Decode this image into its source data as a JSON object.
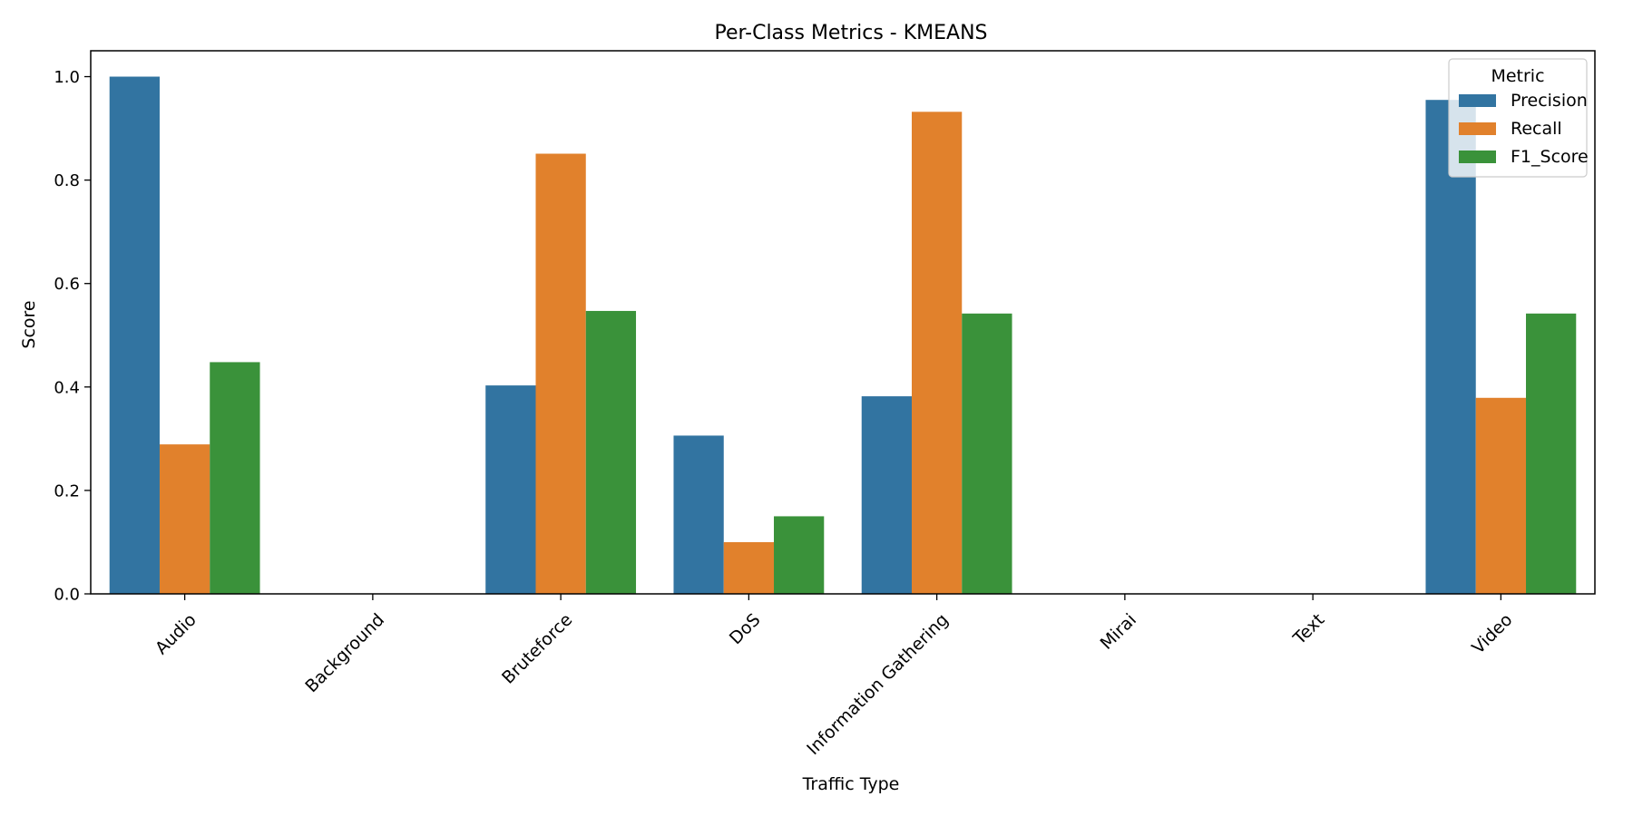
{
  "chart_data": {
    "type": "bar",
    "title": "Per-Class Metrics - KMEANS",
    "xlabel": "Traffic Type",
    "ylabel": "Score",
    "ylim": [
      0,
      1.05
    ],
    "yticks": [
      "0.0",
      "0.2",
      "0.4",
      "0.6",
      "0.8",
      "1.0"
    ],
    "grid": false,
    "categories": [
      "Audio",
      "Background",
      "Bruteforce",
      "DoS",
      "Information Gathering",
      "Mirai",
      "Text",
      "Video"
    ],
    "series": [
      {
        "name": "Precision",
        "color": "#3274a1",
        "values": [
          1.0,
          0.0,
          0.403,
          0.306,
          0.382,
          0.0,
          0.0,
          0.955
        ]
      },
      {
        "name": "Recall",
        "color": "#e1812c",
        "values": [
          0.289,
          0.0,
          0.851,
          0.1,
          0.932,
          0.0,
          0.0,
          0.379
        ]
      },
      {
        "name": "F1_Score",
        "color": "#3a923a",
        "values": [
          0.448,
          0.0,
          0.547,
          0.15,
          0.542,
          0.0,
          0.0,
          0.542
        ]
      }
    ],
    "legend": {
      "title": "Metric",
      "placement": "top-right"
    }
  }
}
